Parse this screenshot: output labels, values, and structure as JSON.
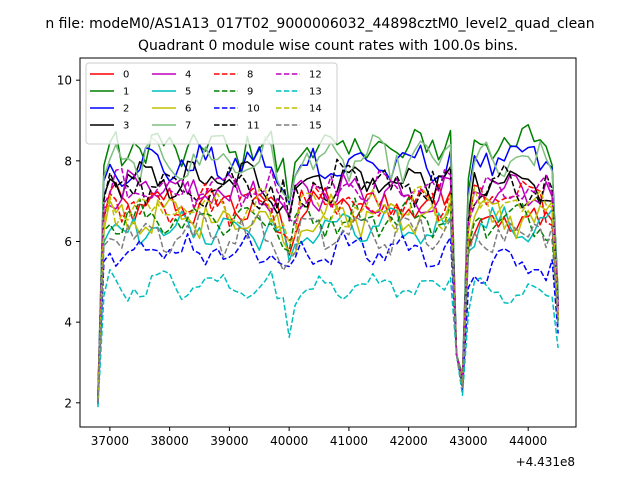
{
  "chart_data": {
    "type": "line",
    "suptitle": "n file: modeM0/AS1A13_017T02_9000006032_44898cztM0_level2_quad_clean",
    "title": "Quadrant 0 module wise count rates with 100.0s bins.",
    "xlabel": "",
    "ylabel": "",
    "offset_text": "+4.431e8",
    "xlim": [
      36500,
      44800
    ],
    "ylim": [
      1.4,
      10.55
    ],
    "x_ticks": [
      37000,
      38000,
      39000,
      40000,
      41000,
      42000,
      43000,
      44000
    ],
    "y_ticks": [
      2,
      4,
      6,
      8,
      10
    ],
    "grid": false,
    "legend_position": "top-left",
    "legend_columns": 4,
    "x": {
      "start": 36800,
      "step": 100,
      "count": 78
    },
    "gap_index": 60,
    "series": [
      {
        "name": "0",
        "color": "#ff0000",
        "dash": "solid",
        "mean": 6.9,
        "mean2": 6.5,
        "amp": 0.35
      },
      {
        "name": "1",
        "color": "#008000",
        "dash": "solid",
        "mean": 8.3,
        "mean2": 8.4,
        "amp": 0.45
      },
      {
        "name": "2",
        "color": "#0000ff",
        "dash": "solid",
        "mean": 7.9,
        "mean2": 8.0,
        "amp": 0.35
      },
      {
        "name": "3",
        "color": "#000000",
        "dash": "solid",
        "mean": 7.5,
        "mean2": 7.4,
        "amp": 0.35
      },
      {
        "name": "4",
        "color": "#bf00bf",
        "dash": "solid",
        "mean": 7.2,
        "mean2": 7.3,
        "amp": 0.35
      },
      {
        "name": "5",
        "color": "#00bfbf",
        "dash": "solid",
        "mean": 6.3,
        "mean2": 6.4,
        "amp": 0.3
      },
      {
        "name": "6",
        "color": "#bfbf00",
        "dash": "solid",
        "mean": 6.6,
        "mean2": 6.6,
        "amp": 0.35
      },
      {
        "name": "7",
        "color": "#7fbf7f",
        "dash": "solid",
        "mean": 8.0,
        "mean2": 7.9,
        "amp": 0.4
      },
      {
        "name": "8",
        "color": "#ff0000",
        "dash": "dashed",
        "mean": 6.9,
        "mean2": 7.0,
        "amp": 0.35
      },
      {
        "name": "9",
        "color": "#008000",
        "dash": "dashed",
        "mean": 6.6,
        "mean2": 6.5,
        "amp": 0.3
      },
      {
        "name": "10",
        "color": "#0000ff",
        "dash": "dashed",
        "mean": 5.8,
        "mean2": 5.4,
        "amp": 0.3
      },
      {
        "name": "11",
        "color": "#000000",
        "dash": "dashed",
        "mean": 7.4,
        "mean2": 7.3,
        "amp": 0.4
      },
      {
        "name": "12",
        "color": "#bf00bf",
        "dash": "dashed",
        "mean": 7.3,
        "mean2": 7.2,
        "amp": 0.35
      },
      {
        "name": "13",
        "color": "#00bfbf",
        "dash": "dashed",
        "mean": 4.9,
        "mean2": 4.7,
        "amp": 0.2
      },
      {
        "name": "14",
        "color": "#bfbf00",
        "dash": "dashed",
        "mean": 6.8,
        "mean2": 6.9,
        "amp": 0.35
      },
      {
        "name": "15",
        "color": "#7f7f7f",
        "dash": "dashed",
        "mean": 6.2,
        "mean2": 6.3,
        "amp": 0.35
      }
    ]
  }
}
